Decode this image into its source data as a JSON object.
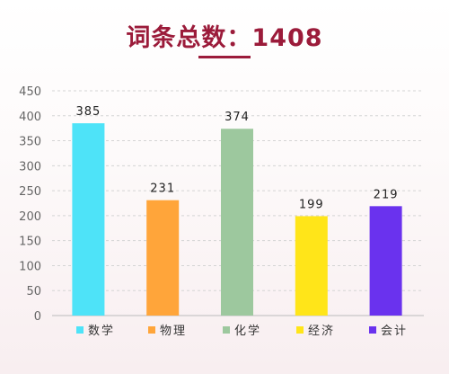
{
  "header": {
    "title": "词条总数：1408"
  },
  "chart_data": {
    "type": "bar",
    "categories": [
      "数学",
      "物理",
      "化学",
      "经济",
      "会计"
    ],
    "values": [
      385,
      231,
      374,
      199,
      219
    ],
    "colors": [
      "#4ee3f8",
      "#ffa53a",
      "#9dc89e",
      "#ffe519",
      "#6a32ee"
    ],
    "ylim": [
      0,
      450
    ],
    "yticks": [
      0,
      50,
      100,
      150,
      200,
      250,
      300,
      350,
      400,
      450
    ],
    "grid": true,
    "legend_position": "bottom"
  }
}
